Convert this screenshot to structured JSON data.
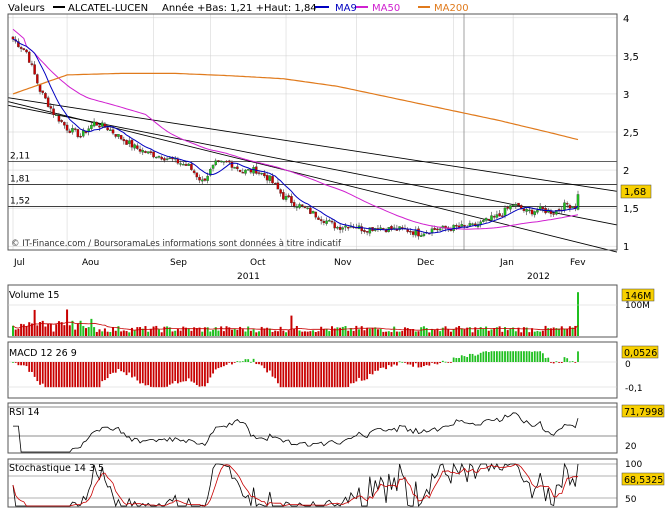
{
  "header": {
    "label": "Valeurs",
    "name": "ALCATEL-LUCEN",
    "range": "Année +Bas: 1,21 +Haut: 1,84",
    "ma9": "MA9",
    "ma50": "MA50",
    "ma200": "MA200"
  },
  "colors": {
    "up": "#1fbf1f",
    "down": "#c80000",
    "ma9": "#0000c0",
    "ma50": "#d020d0",
    "ma200": "#e07a1c",
    "badge": "#f8d000",
    "grid": "#cfcfcf"
  },
  "watermark": "© IT-Finance.com / BoursoramaLes informations sont données à titre indicatif",
  "months": [
    "Jul",
    "Aou",
    "Sep",
    "Oct",
    "Nov",
    "Dec",
    "Jan",
    "Fev"
  ],
  "years": [
    "2011",
    "2012"
  ],
  "chart_data": [
    {
      "type": "candlestick",
      "title": "ALCATEL-LUCEN",
      "yticks": [
        "1",
        "1,5",
        "2",
        "2,5",
        "3",
        "3,5",
        "4"
      ],
      "ylim": [
        0.95,
        4.05
      ],
      "hlines": [
        {
          "label": "2,11",
          "value": 2.11
        },
        {
          "label": "1,81",
          "value": 1.81
        },
        {
          "label": "1,52",
          "value": 1.52
        }
      ],
      "last_value": "1,68",
      "close_anchors": [
        [
          0,
          3.72
        ],
        [
          5,
          3.55
        ],
        [
          10,
          3.05
        ],
        [
          15,
          2.75
        ],
        [
          20,
          2.55
        ],
        [
          25,
          2.45
        ],
        [
          30,
          2.62
        ],
        [
          35,
          2.55
        ],
        [
          40,
          2.42
        ],
        [
          45,
          2.3
        ],
        [
          50,
          2.22
        ],
        [
          55,
          2.18
        ],
        [
          60,
          2.12
        ],
        [
          65,
          2.05
        ],
        [
          70,
          1.85
        ],
        [
          75,
          2.08
        ],
        [
          80,
          2.1
        ],
        [
          85,
          1.98
        ],
        [
          90,
          2.0
        ],
        [
          95,
          1.88
        ],
        [
          100,
          1.65
        ],
        [
          105,
          1.55
        ],
        [
          110,
          1.45
        ],
        [
          115,
          1.35
        ],
        [
          120,
          1.25
        ],
        [
          125,
          1.28
        ],
        [
          130,
          1.22
        ],
        [
          135,
          1.25
        ],
        [
          140,
          1.22
        ],
        [
          145,
          1.22
        ],
        [
          150,
          1.17
        ],
        [
          155,
          1.22
        ],
        [
          160,
          1.23
        ],
        [
          165,
          1.25
        ],
        [
          170,
          1.26
        ],
        [
          175,
          1.33
        ],
        [
          180,
          1.4
        ],
        [
          185,
          1.55
        ],
        [
          190,
          1.45
        ],
        [
          195,
          1.48
        ],
        [
          200,
          1.45
        ],
        [
          205,
          1.55
        ],
        [
          208,
          1.52
        ],
        [
          209,
          1.68
        ]
      ],
      "ma200_anchors": [
        [
          0,
          3.0
        ],
        [
          20,
          3.25
        ],
        [
          40,
          3.27
        ],
        [
          60,
          3.27
        ],
        [
          80,
          3.24
        ],
        [
          100,
          3.2
        ],
        [
          120,
          3.1
        ],
        [
          140,
          2.95
        ],
        [
          160,
          2.8
        ],
        [
          180,
          2.65
        ],
        [
          200,
          2.48
        ],
        [
          209,
          2.4
        ]
      ],
      "trendlines": [
        {
          "from": [
            0,
            2.95
          ],
          "to": [
            209,
            1.8
          ]
        },
        {
          "from": [
            0,
            2.9
          ],
          "to": [
            209,
            1.05
          ]
        },
        {
          "from": [
            0,
            2.85
          ],
          "to": [
            209,
            1.38
          ]
        }
      ]
    },
    {
      "type": "bar",
      "title": "Volume 15",
      "ytick": "100M",
      "last_value": "146M",
      "max_value": 146,
      "ylim": [
        0,
        160
      ]
    },
    {
      "type": "bar",
      "title": "MACD 12 26 9",
      "yticks": [
        "0",
        "-0,1"
      ],
      "last_value": "0,0526",
      "ylim": [
        -0.15,
        0.1
      ]
    },
    {
      "type": "line",
      "title": "RSI 14",
      "yticks": [
        "80",
        "20"
      ],
      "last_value": "71,7998",
      "ylim": [
        0,
        100
      ]
    },
    {
      "type": "line",
      "title": "Stochastique 14 3 5",
      "yticks": [
        "100",
        "50",
        "0"
      ],
      "last_value": "68,5325",
      "ylim": [
        0,
        100
      ]
    }
  ]
}
